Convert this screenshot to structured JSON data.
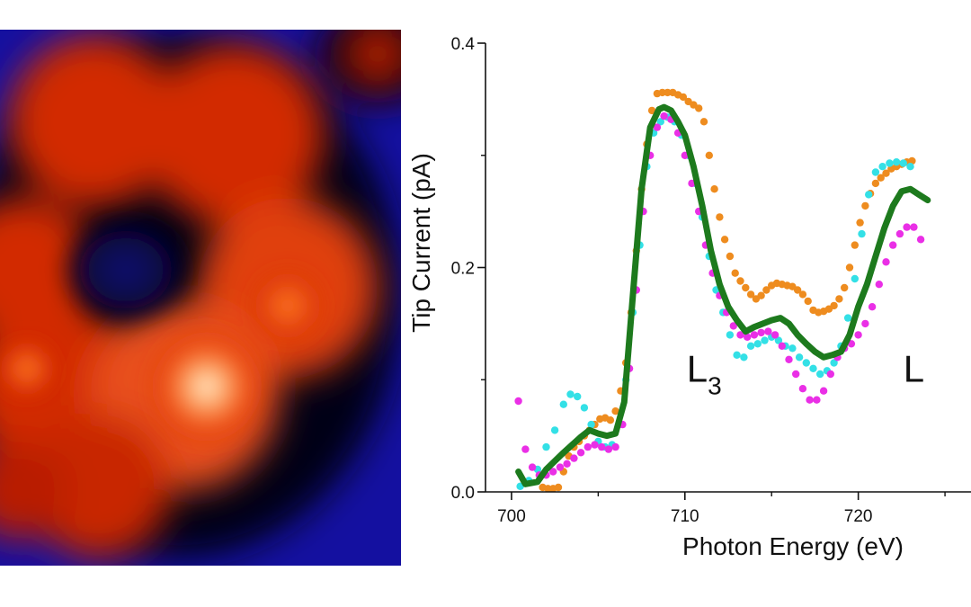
{
  "chart_data": {
    "type": "scatter",
    "xlabel": "Photon Energy (eV)",
    "ylabel": "Tip Current (pA)",
    "xlim": [
      698.5,
      726.5
    ],
    "ylim": [
      0,
      0.4
    ],
    "x_ticks": [
      700,
      710,
      720
    ],
    "x_tick_labels": [
      "700",
      "710",
      "720"
    ],
    "y_ticks": [
      0.0,
      0.2,
      0.4
    ],
    "y_tick_labels": [
      "0.0",
      "0.2",
      "0.4"
    ],
    "annotations": [
      {
        "base": "L",
        "sub": "3",
        "x": 710.1,
        "y": 0.098
      },
      {
        "base": "L",
        "sub": "",
        "x": 722.6,
        "y": 0.098
      }
    ],
    "series": [
      {
        "style": "line",
        "color": "#1d7a1d",
        "x": [
          700.4,
          700.8,
          701.5,
          702.0,
          703.0,
          704.0,
          704.5,
          705.0,
          705.5,
          706.0,
          706.5,
          707.0,
          707.5,
          708.0,
          708.5,
          708.8,
          709.2,
          709.6,
          710.0,
          710.5,
          711.0,
          711.5,
          712.0,
          712.5,
          713.0,
          713.5,
          714.0,
          714.5,
          715.0,
          715.5,
          716.0,
          716.5,
          717.0,
          717.5,
          718.0,
          718.5,
          719.0,
          719.5,
          720.0,
          720.5,
          721.0,
          721.5,
          722.0,
          722.5,
          723.0,
          723.5,
          724.0
        ],
        "y": [
          0.018,
          0.007,
          0.009,
          0.02,
          0.035,
          0.049,
          0.055,
          0.052,
          0.05,
          0.052,
          0.08,
          0.175,
          0.27,
          0.325,
          0.341,
          0.343,
          0.34,
          0.33,
          0.318,
          0.29,
          0.255,
          0.215,
          0.185,
          0.165,
          0.153,
          0.143,
          0.147,
          0.15,
          0.153,
          0.155,
          0.15,
          0.14,
          0.132,
          0.125,
          0.12,
          0.122,
          0.125,
          0.14,
          0.165,
          0.185,
          0.21,
          0.235,
          0.255,
          0.268,
          0.27,
          0.265,
          0.26
        ]
      },
      {
        "style": "dots",
        "color": "#ee8c1f",
        "x": [
          701.8,
          702.1,
          702.4,
          702.7,
          703.0,
          703.3,
          703.6,
          703.9,
          704.2,
          704.5,
          704.8,
          705.1,
          705.4,
          705.7,
          706.0,
          706.3,
          706.6,
          706.9,
          707.2,
          707.5,
          707.8,
          708.1,
          708.4,
          708.7,
          709.0,
          709.3,
          709.6,
          709.9,
          710.2,
          710.5,
          710.8,
          711.1,
          711.4,
          711.7,
          712.0,
          712.3,
          712.6,
          712.9,
          713.2,
          713.5,
          713.8,
          714.1,
          714.4,
          714.7,
          715.0,
          715.3,
          715.6,
          715.9,
          716.2,
          716.5,
          716.8,
          717.1,
          717.4,
          717.7,
          718.0,
          718.3,
          718.6,
          718.9,
          719.2,
          719.5,
          719.8,
          720.1,
          720.4,
          720.7,
          721.0,
          721.3,
          721.6,
          721.9,
          722.2,
          722.5,
          722.8,
          723.1
        ],
        "y": [
          0.004,
          0.003,
          0.003,
          0.004,
          0.018,
          0.032,
          0.04,
          0.045,
          0.05,
          0.055,
          0.06,
          0.065,
          0.066,
          0.064,
          0.072,
          0.09,
          0.115,
          0.16,
          0.215,
          0.27,
          0.31,
          0.34,
          0.355,
          0.356,
          0.356,
          0.356,
          0.354,
          0.352,
          0.348,
          0.345,
          0.342,
          0.33,
          0.3,
          0.27,
          0.245,
          0.225,
          0.21,
          0.195,
          0.188,
          0.182,
          0.176,
          0.172,
          0.175,
          0.18,
          0.184,
          0.186,
          0.185,
          0.184,
          0.183,
          0.18,
          0.176,
          0.17,
          0.162,
          0.16,
          0.161,
          0.163,
          0.166,
          0.172,
          0.182,
          0.2,
          0.22,
          0.24,
          0.255,
          0.266,
          0.275,
          0.28,
          0.284,
          0.288,
          0.29,
          0.292,
          0.294,
          0.295
        ]
      },
      {
        "style": "dots",
        "color": "#33e0e6",
        "x": [
          700.5,
          701.0,
          701.5,
          702.0,
          702.5,
          703.0,
          703.4,
          703.8,
          704.2,
          704.6,
          705.0,
          705.4,
          705.8,
          706.2,
          706.6,
          707.0,
          707.4,
          707.8,
          708.2,
          708.6,
          709.0,
          709.4,
          709.8,
          710.2,
          710.6,
          711.0,
          711.4,
          711.8,
          712.2,
          712.6,
          713.0,
          713.4,
          713.8,
          714.2,
          714.6,
          715.0,
          715.4,
          715.8,
          716.2,
          716.6,
          717.0,
          717.4,
          717.8,
          718.2,
          718.6,
          719.0,
          719.4,
          719.8,
          720.2,
          720.6,
          721.0,
          721.4,
          721.8,
          722.2,
          722.6,
          723.0
        ],
        "y": [
          0.005,
          0.01,
          0.02,
          0.04,
          0.055,
          0.078,
          0.087,
          0.085,
          0.075,
          0.06,
          0.045,
          0.04,
          0.042,
          0.06,
          0.1,
          0.16,
          0.22,
          0.29,
          0.32,
          0.33,
          0.334,
          0.33,
          0.318,
          0.3,
          0.275,
          0.245,
          0.21,
          0.18,
          0.16,
          0.14,
          0.122,
          0.12,
          0.13,
          0.132,
          0.135,
          0.138,
          0.135,
          0.13,
          0.128,
          0.12,
          0.115,
          0.11,
          0.105,
          0.108,
          0.115,
          0.13,
          0.155,
          0.19,
          0.23,
          0.265,
          0.285,
          0.29,
          0.293,
          0.294,
          0.293,
          0.29
        ]
      },
      {
        "style": "dots",
        "color": "#ea2fe6",
        "x": [
          700.4,
          700.8,
          701.2,
          701.6,
          702.0,
          702.4,
          702.8,
          703.2,
          703.6,
          704.0,
          704.4,
          704.8,
          705.2,
          705.6,
          706.0,
          706.4,
          706.8,
          707.2,
          707.6,
          708.0,
          708.4,
          708.8,
          709.2,
          709.6,
          710.0,
          710.4,
          710.8,
          711.2,
          711.6,
          712.0,
          712.4,
          712.8,
          713.2,
          713.6,
          714.0,
          714.4,
          714.8,
          715.2,
          715.6,
          716.0,
          716.4,
          716.8,
          717.2,
          717.6,
          718.0,
          718.4,
          718.8,
          719.2,
          719.6,
          720.0,
          720.4,
          720.8,
          721.2,
          721.6,
          722.0,
          722.4,
          722.8,
          723.2,
          723.6
        ],
        "y": [
          0.081,
          0.038,
          0.022,
          0.015,
          0.015,
          0.018,
          0.022,
          0.025,
          0.03,
          0.035,
          0.04,
          0.042,
          0.04,
          0.038,
          0.04,
          0.06,
          0.11,
          0.18,
          0.25,
          0.3,
          0.325,
          0.335,
          0.332,
          0.32,
          0.3,
          0.275,
          0.25,
          0.22,
          0.195,
          0.175,
          0.16,
          0.148,
          0.14,
          0.138,
          0.14,
          0.142,
          0.143,
          0.14,
          0.13,
          0.118,
          0.105,
          0.092,
          0.082,
          0.082,
          0.09,
          0.105,
          0.12,
          0.128,
          0.132,
          0.14,
          0.15,
          0.165,
          0.185,
          0.205,
          0.22,
          0.23,
          0.236,
          0.236,
          0.225
        ]
      }
    ]
  },
  "image_panel": {
    "type": "heatmap",
    "colormap": [
      "#000000",
      "#1a10a0",
      "#cc2a08",
      "#ff6a1c",
      "#ffe0b0"
    ]
  }
}
